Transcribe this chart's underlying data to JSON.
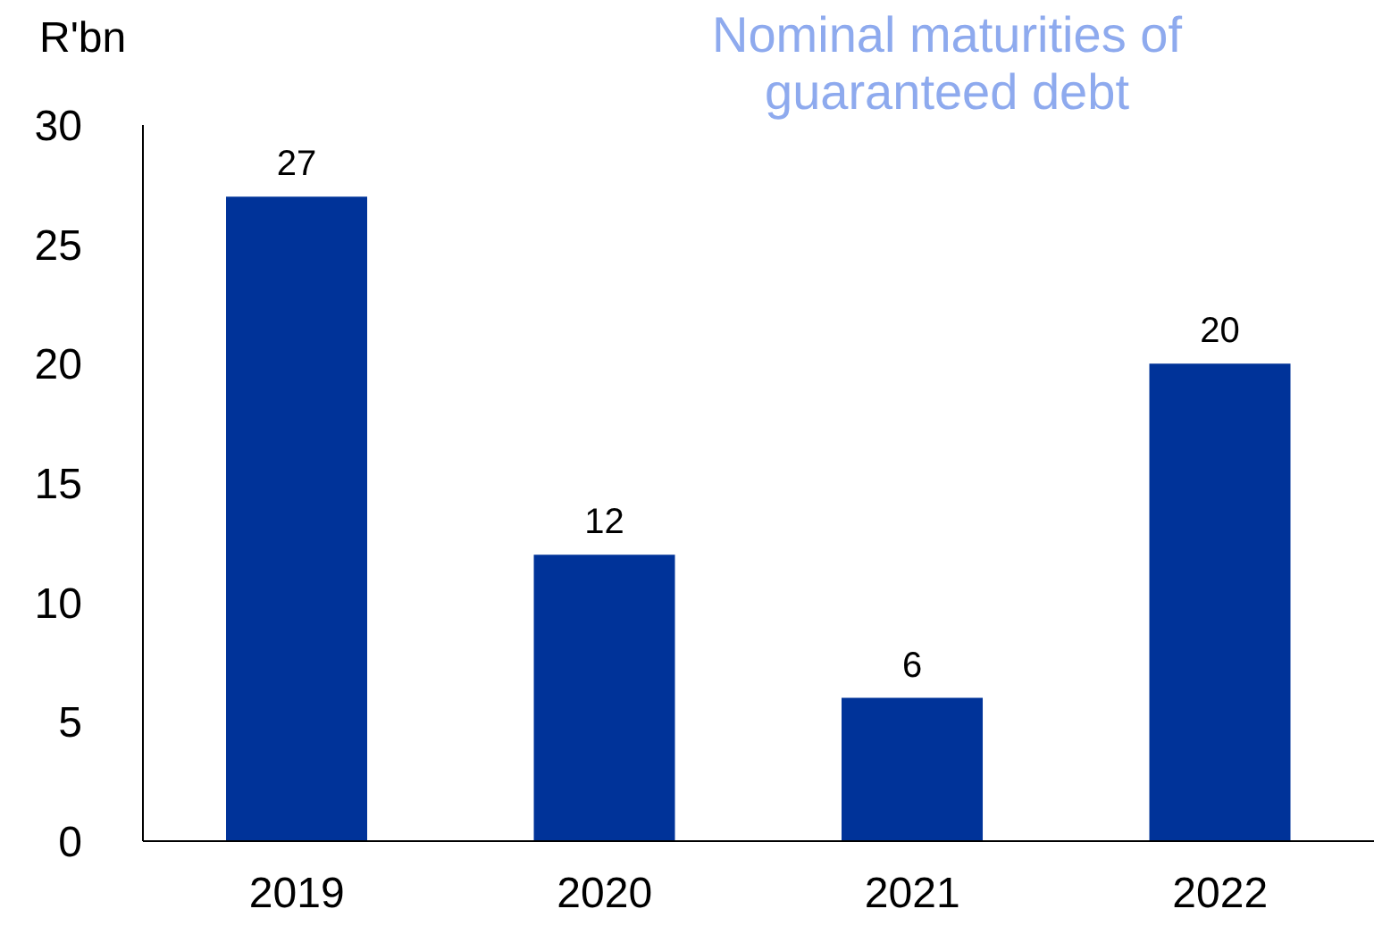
{
  "chart_data": {
    "type": "bar",
    "title": "Nominal maturities of guaranteed debt",
    "ylabel": "R'bn",
    "categories": [
      "2019",
      "2020",
      "2021",
      "2022"
    ],
    "values": [
      27,
      12,
      6,
      20
    ],
    "color": "#003399",
    "ylim": [
      0,
      30
    ],
    "yticks": [
      0,
      5,
      10,
      15,
      20,
      25,
      30
    ],
    "data_labels": true,
    "grid": false,
    "legend": false
  }
}
